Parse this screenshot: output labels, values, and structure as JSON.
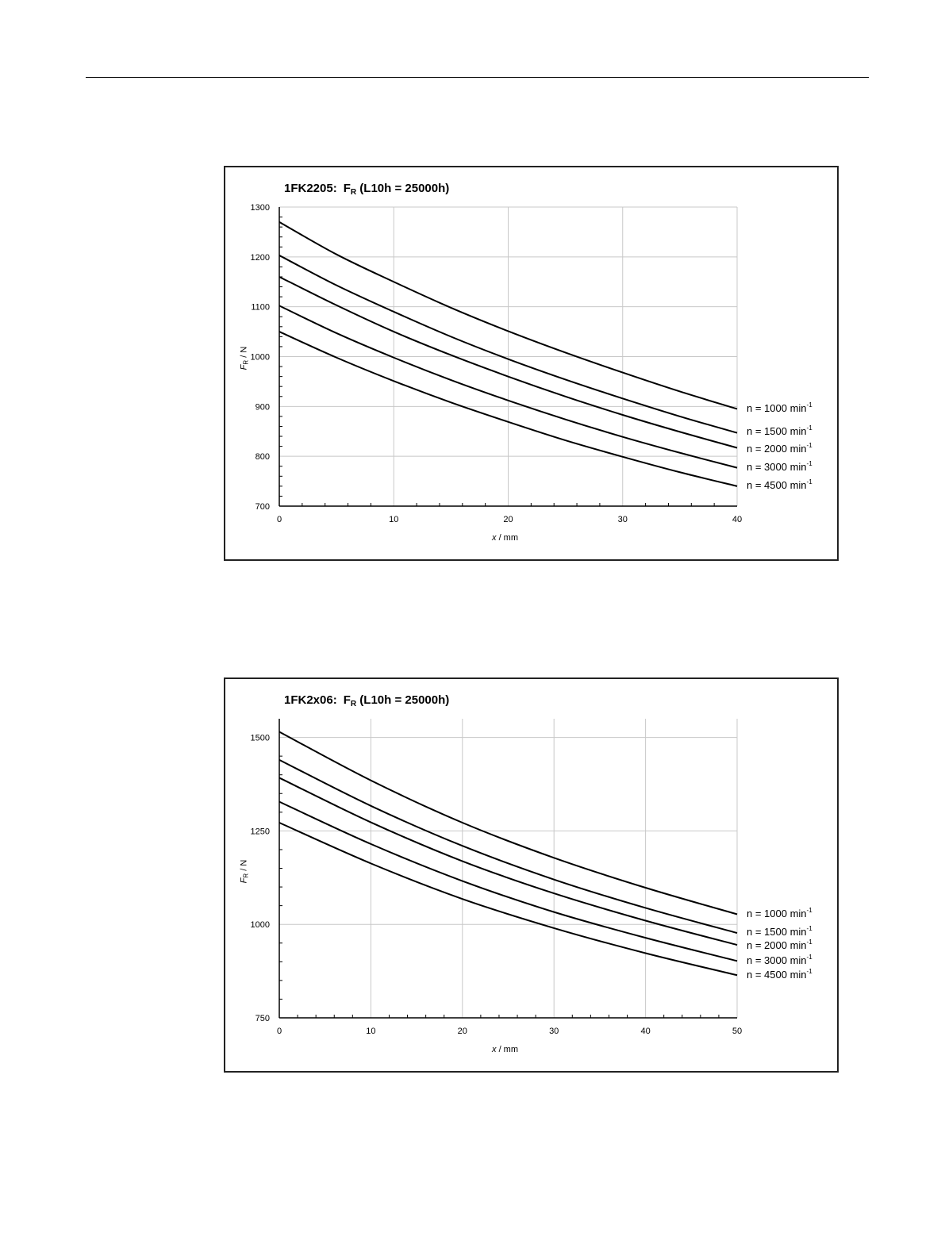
{
  "chart_data": [
    {
      "type": "line",
      "title_prefix": "1FK2205:",
      "title_symbol": "F",
      "title_symbol_sub": "R",
      "title_suffix": "(L10h = 25000h)",
      "xlabel_var": "x",
      "xlabel_unit": "/ mm",
      "ylabel_var": "F",
      "ylabel_sub": "R",
      "ylabel_unit": "/ N",
      "xlim": [
        0,
        40
      ],
      "ylim": [
        700,
        1300
      ],
      "xticks": [
        0,
        10,
        20,
        30,
        40
      ],
      "yticks": [
        700,
        800,
        900,
        1000,
        1100,
        1200,
        1300
      ],
      "grid": true,
      "legend_placement": "right",
      "series": [
        {
          "name": "n = 1000 min",
          "unit_exp": "-1",
          "x": [
            0,
            5,
            10,
            15,
            20,
            25,
            30,
            35,
            40
          ],
          "values": [
            1270,
            1205,
            1150,
            1098,
            1051,
            1008,
            968,
            930,
            895
          ]
        },
        {
          "name": "n = 1500 min",
          "unit_exp": "-1",
          "x": [
            0,
            5,
            10,
            15,
            20,
            25,
            30,
            35,
            40
          ],
          "values": [
            1203,
            1143,
            1090,
            1040,
            995,
            954,
            916,
            880,
            847
          ]
        },
        {
          "name": "n = 2000 min",
          "unit_exp": "-1",
          "x": [
            0,
            5,
            10,
            15,
            20,
            25,
            30,
            35,
            40
          ],
          "values": [
            1160,
            1103,
            1050,
            1003,
            960,
            920,
            883,
            849,
            817
          ]
        },
        {
          "name": "n = 3000 min",
          "unit_exp": "-1",
          "x": [
            0,
            5,
            10,
            15,
            20,
            25,
            30,
            35,
            40
          ],
          "values": [
            1102,
            1047,
            998,
            953,
            912,
            874,
            839,
            807,
            777
          ]
        },
        {
          "name": "n = 4500 min",
          "unit_exp": "-1",
          "x": [
            0,
            5,
            10,
            15,
            20,
            25,
            30,
            35,
            40
          ],
          "values": [
            1050,
            998,
            951,
            908,
            869,
            832,
            799,
            768,
            740
          ]
        }
      ]
    },
    {
      "type": "line",
      "title_prefix": "1FK2x06:",
      "title_symbol": "F",
      "title_symbol_sub": "R",
      "title_suffix": "(L10h = 25000h)",
      "xlabel_var": "x",
      "xlabel_unit": "/ mm",
      "ylabel_var": "F",
      "ylabel_sub": "R",
      "ylabel_unit": "/ N",
      "xlim": [
        0,
        50
      ],
      "ylim": [
        750,
        1550
      ],
      "xticks": [
        0,
        10,
        20,
        30,
        40,
        50
      ],
      "yticks": [
        750,
        1000,
        1250,
        1500
      ],
      "grid": true,
      "legend_placement": "right",
      "series": [
        {
          "name": "n = 1000 min",
          "unit_exp": "-1",
          "x": [
            0,
            10,
            20,
            30,
            40,
            50
          ],
          "values": [
            1515,
            1385,
            1272,
            1178,
            1098,
            1027
          ]
        },
        {
          "name": "n = 1500 min",
          "unit_exp": "-1",
          "x": [
            0,
            10,
            20,
            30,
            40,
            50
          ],
          "values": [
            1440,
            1317,
            1210,
            1120,
            1044,
            977
          ]
        },
        {
          "name": "n = 2000 min",
          "unit_exp": "-1",
          "x": [
            0,
            10,
            20,
            30,
            40,
            50
          ],
          "values": [
            1392,
            1273,
            1169,
            1083,
            1010,
            945
          ]
        },
        {
          "name": "n = 3000 min",
          "unit_exp": "-1",
          "x": [
            0,
            10,
            20,
            30,
            40,
            50
          ],
          "values": [
            1328,
            1215,
            1116,
            1033,
            964,
            902
          ]
        },
        {
          "name": "n = 4500 min",
          "unit_exp": "-1",
          "x": [
            0,
            10,
            20,
            30,
            40,
            50
          ],
          "values": [
            1272,
            1163,
            1068,
            990,
            923,
            864
          ]
        }
      ]
    }
  ]
}
